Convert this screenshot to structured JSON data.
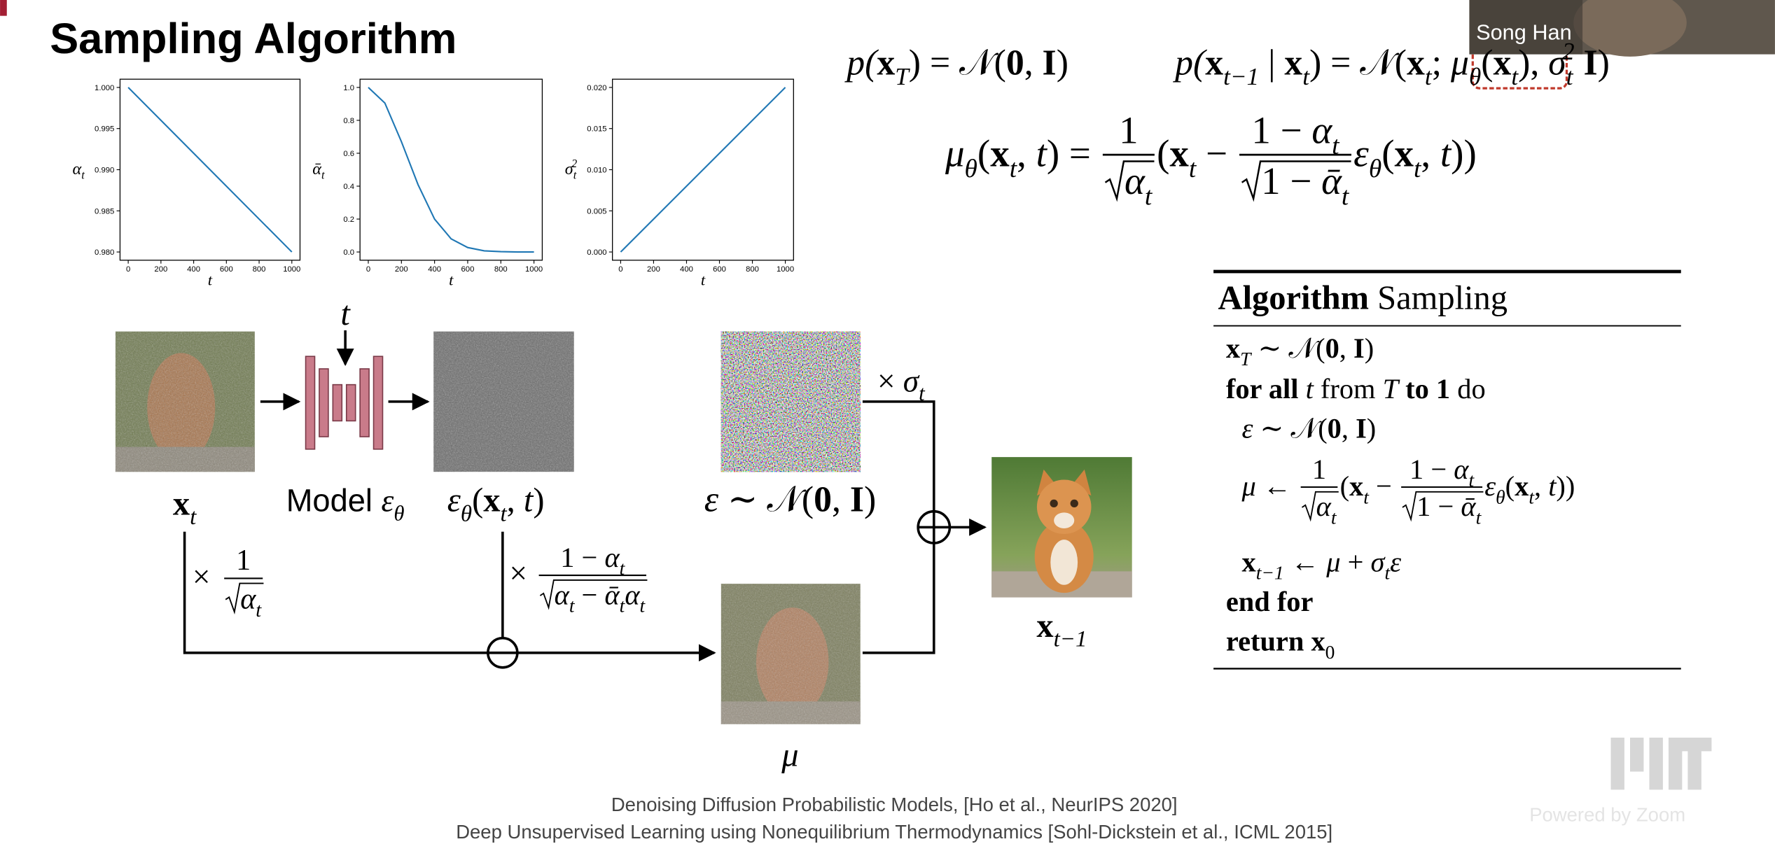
{
  "header": {
    "title": "Sampling Algorithm"
  },
  "chart_data": [
    {
      "type": "line",
      "x": [
        0,
        1000
      ],
      "values": [
        1,
        0.98
      ],
      "color": "#1f77b4",
      "xlim": [
        -50,
        1050
      ],
      "ylim": [
        0.979,
        1.001
      ],
      "xticks": [
        0,
        200,
        400,
        600,
        800,
        1000
      ],
      "yticks": [
        {
          "value": 0.98,
          "label": "0.980"
        },
        0.985,
        {
          "value": 0.99,
          "label": "0.990"
        },
        0.995,
        {
          "value": 1,
          "label": "1.000"
        }
      ],
      "xlabel": "t",
      "ylabel": [
        "α",
        "t"
      ]
    },
    {
      "type": "line",
      "x": [
        0,
        100,
        200,
        300,
        400,
        500,
        600,
        700,
        800,
        900,
        1000
      ],
      "values": [
        1,
        0.905,
        0.67,
        0.41,
        0.2,
        0.08,
        0.027,
        0.007,
        0.002,
        0,
        0
      ],
      "color": "#1f77b4",
      "xlim": [
        -50,
        1050
      ],
      "ylim": [
        -0.05,
        1.05
      ],
      "xticks": [
        0,
        200,
        400,
        600,
        800,
        1000
      ],
      "yticks": [
        {
          "value": 0,
          "label": "0.0"
        },
        0.2,
        0.4,
        0.6,
        0.8,
        {
          "value": 1,
          "label": "1.0"
        }
      ],
      "xlabel": "t",
      "ylabel": [
        "ᾱ",
        "t"
      ]
    },
    {
      "type": "line",
      "x": [
        0,
        1000
      ],
      "values": [
        0,
        0.02
      ],
      "color": "#1f77b4",
      "xlim": [
        -50,
        1050
      ],
      "ylim": [
        -0.001,
        0.021
      ],
      "xticks": [
        0,
        200,
        400,
        600,
        800,
        1000
      ],
      "yticks": [
        {
          "value": 0,
          "label": "0.000"
        },
        0.005,
        {
          "value": 0.01,
          "label": "0.010"
        },
        0.015,
        {
          "value": 0.02,
          "label": "0.020"
        }
      ],
      "xlabel": "t",
      "ylabel": [
        "σ",
        "t",
        "2"
      ]
    }
  ],
  "equations": {
    "prior": [
      "p(",
      "x",
      "T",
      ") = ",
      "𝒩",
      "(",
      "0",
      ", ",
      "I",
      ")"
    ],
    "reverse": [
      "p(",
      "x",
      "t−1",
      " | ",
      "x",
      "t",
      ") = ",
      "𝒩",
      "(",
      "x",
      "t",
      "; ",
      "μ",
      "θ",
      "(",
      "x",
      "t",
      "), ",
      "σ",
      "t",
      "2",
      " I",
      ")"
    ],
    "mean": {
      "lhs": [
        "μ",
        "θ",
        "(",
        "x",
        "t",
        ", ",
        "t",
        ") = "
      ],
      "num1": "1",
      "den1": [
        "α",
        "t"
      ],
      "mid": [
        "(",
        "x",
        "t",
        " − "
      ],
      "num2": [
        "1 − ",
        "α",
        "t"
      ],
      "den2": [
        "1 − ",
        "ᾱ",
        "t"
      ],
      "tail": [
        "ε",
        "θ",
        "(",
        "x",
        "t",
        ", ",
        "t",
        "))"
      ]
    }
  },
  "algorithm": {
    "title": [
      "Algorithm",
      " Sampling"
    ],
    "lines": [
      [
        "x",
        "T",
        " ∼ ",
        "𝒩",
        "(",
        "0",
        ", ",
        "I",
        ")"
      ],
      [
        "for all",
        " t ",
        "from ",
        "T",
        " to 1 ",
        "do"
      ],
      [
        "ε",
        " ∼ ",
        "𝒩",
        "(",
        "0",
        ", ",
        "I",
        ")"
      ],
      {
        "lhs": [
          "μ",
          " ← "
        ],
        "num1": "1",
        "den1": [
          "α",
          "t"
        ],
        "mid": [
          "(",
          "x",
          "t",
          " − "
        ],
        "num2": [
          "1 − ",
          "α",
          "t"
        ],
        "den2": [
          "1 − ",
          "ᾱ",
          "t"
        ],
        "tail": [
          "ε",
          "θ",
          "(",
          "x",
          "t",
          ", ",
          "t",
          "))"
        ]
      },
      [
        "x",
        "t−1",
        " ← ",
        "μ",
        " + ",
        "σ",
        "t",
        "ε"
      ],
      [
        "end for"
      ],
      [
        "return ",
        "x",
        "0"
      ]
    ]
  },
  "diagram": {
    "t_input": "t",
    "x_t": [
      "x",
      "t"
    ],
    "model": [
      "Model ",
      "ε",
      "θ"
    ],
    "eps_pred": [
      "ε",
      "θ",
      "(",
      "x",
      "t",
      ", ",
      "t",
      ")"
    ],
    "noise": [
      "ε",
      " ∼ ",
      "𝒩",
      "(",
      "0",
      ", ",
      "I",
      ")"
    ],
    "sigma_scale": [
      "× ",
      "σ",
      "t"
    ],
    "x_prev": [
      "x",
      "t−1"
    ],
    "mu": "μ",
    "scale1": {
      "times": "×",
      "num": "1",
      "den": [
        "α",
        "t"
      ]
    },
    "scale2": {
      "times": "×",
      "num": [
        "1 − ",
        "α",
        "t"
      ],
      "den": [
        "α",
        "t",
        " − ",
        "ᾱ",
        "t",
        "α",
        "t"
      ]
    }
  },
  "references": [
    "Denoising Diffusion Probabilistic Models, [Ho et al., NeurIPS 2020]",
    "Deep Unsupervised Learning using Nonequilibrium Thermodynamics [Sohl-Dickstein et al., ICML 2015]"
  ],
  "overlay": {
    "speaker": "Song Han",
    "watermark": "Powered by Zoom"
  }
}
